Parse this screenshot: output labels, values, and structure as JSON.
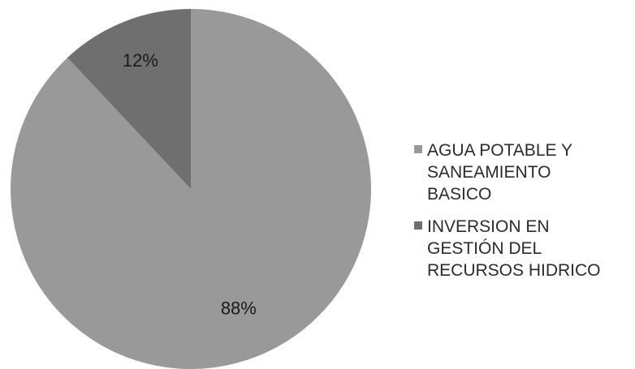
{
  "chart_data": {
    "type": "pie",
    "title": "",
    "start_angle_deg": 90,
    "direction": "clockwise",
    "slices": [
      {
        "label": "AGUA POTABLE Y\nSANEAMIENTO\nBASICO",
        "value": 88,
        "display": "88%",
        "color": "#999999"
      },
      {
        "label": "INVERSION EN\nGESTIÓN DEL\nRECURSOS HIDRICO",
        "value": 12,
        "display": "12%",
        "color": "#6f6f6f"
      }
    ],
    "legend_position": "right"
  }
}
